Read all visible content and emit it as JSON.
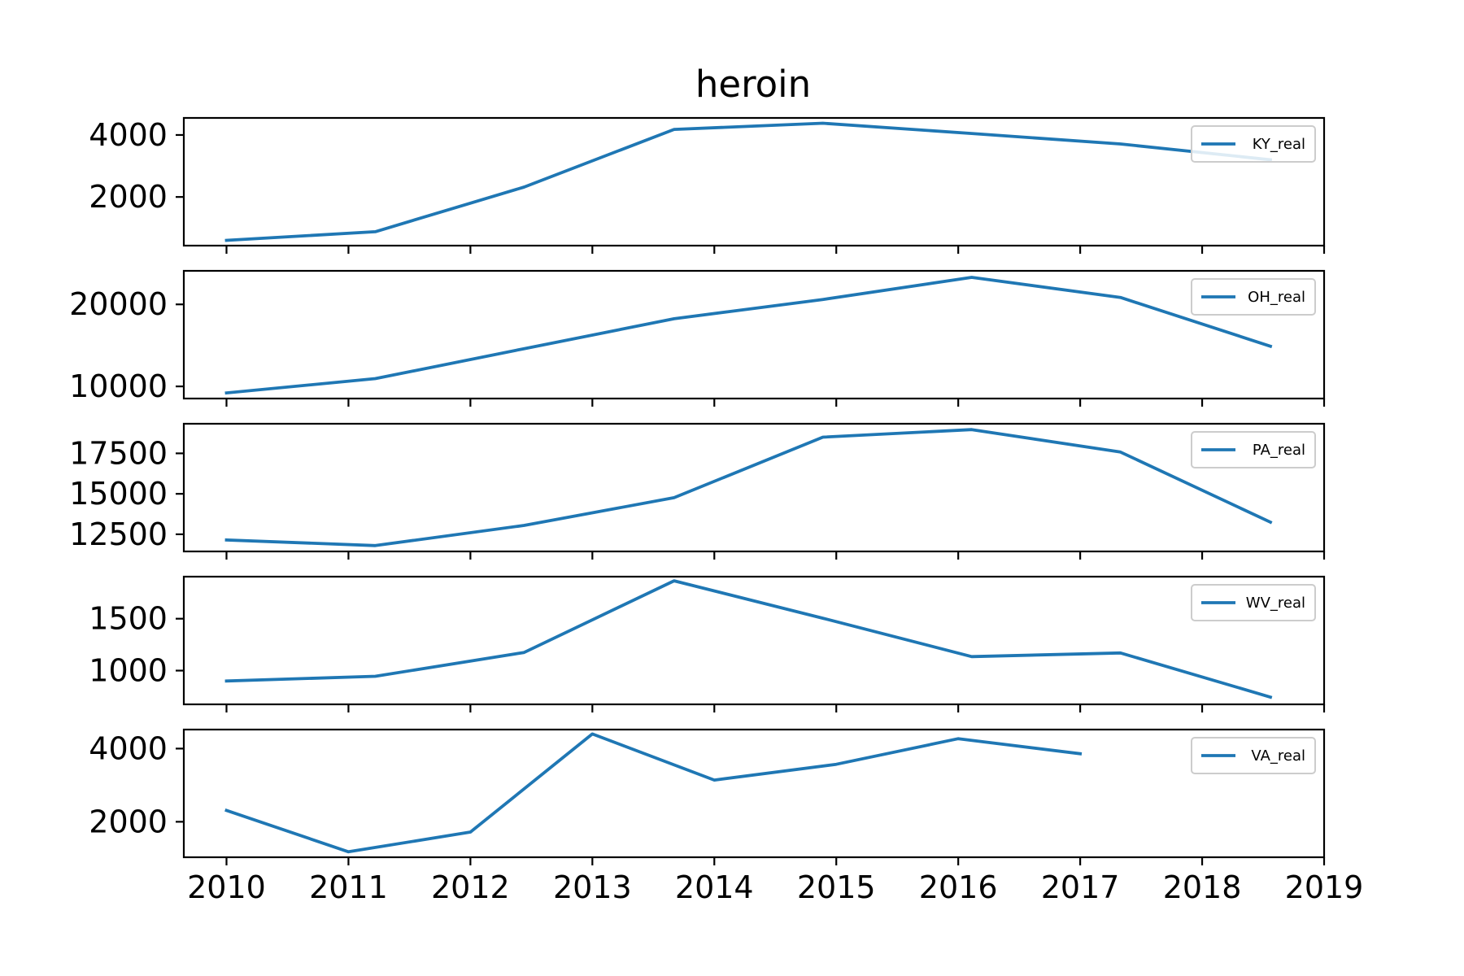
{
  "chart_data": {
    "type": "line",
    "title": "heroin",
    "panels": [
      {
        "series": [
          {
            "name": "KY_real",
            "x": [
              2010,
              2011.22,
              2012.44,
              2013.67,
              2014.89,
              2016.11,
              2017.33,
              2018.56
            ],
            "y": [
              600,
              880,
              2320,
              4180,
              4380,
              4050,
              3710,
              3200
            ]
          }
        ],
        "ylim": [
          430,
          4550
        ],
        "yticks": [
          2000,
          4000
        ],
        "ytick_labels": [
          "2000",
          "4000"
        ],
        "legend": "top-right"
      },
      {
        "series": [
          {
            "name": "OH_real",
            "x": [
              2010,
              2011.22,
              2012.44,
              2013.67,
              2014.89,
              2016.11,
              2017.33,
              2018.56
            ],
            "y": [
              9200,
              10950,
              14600,
              18250,
              20600,
              23300,
              20850,
              14900
            ]
          }
        ],
        "ylim": [
          8520,
          24090
        ],
        "yticks": [
          10000,
          20000
        ],
        "ytick_labels": [
          "10000",
          "20000"
        ],
        "legend": "top-right"
      },
      {
        "series": [
          {
            "name": "PA_real",
            "x": [
              2010,
              2011.22,
              2012.44,
              2013.67,
              2014.89,
              2016.11,
              2017.33,
              2018.56
            ],
            "y": [
              12150,
              11800,
              13050,
              14760,
              18500,
              18970,
              17580,
              13250
            ]
          }
        ],
        "ylim": [
          11440,
          19330
        ],
        "yticks": [
          12500,
          15000,
          17500
        ],
        "ytick_labels": [
          "12500",
          "15000",
          "17500"
        ],
        "legend": "top-right"
      },
      {
        "series": [
          {
            "name": "WV_real",
            "x": [
              2010,
              2011.22,
              2012.44,
              2013.67,
              2014.89,
              2016.11,
              2017.33,
              2018.56
            ],
            "y": [
              900,
              945,
              1175,
              1865,
              1505,
              1135,
              1170,
              745
            ]
          }
        ],
        "ylim": [
          675,
          1905
        ],
        "yticks": [
          1000,
          1500
        ],
        "ytick_labels": [
          "1000",
          "1500"
        ],
        "legend": "top-right"
      },
      {
        "series": [
          {
            "name": "VA_real",
            "x": [
              2010,
              2011,
              2012,
              2013,
              2014,
              2015,
              2016,
              2017
            ],
            "y": [
              2310,
              1180,
              1720,
              4400,
              3140,
              3570,
              4270,
              3860
            ]
          }
        ],
        "ylim": [
          1030,
          4520
        ],
        "yticks": [
          2000,
          4000
        ],
        "ytick_labels": [
          "2000",
          "4000"
        ],
        "legend": "top-right"
      }
    ],
    "xlim": [
      2009.65,
      2019
    ],
    "xticks": [
      2010,
      2011,
      2012,
      2013,
      2014,
      2015,
      2016,
      2017,
      2018,
      2019
    ],
    "xtick_labels": [
      "2010",
      "2011",
      "2012",
      "2013",
      "2014",
      "2015",
      "2016",
      "2017",
      "2018",
      "2019"
    ],
    "line_color": "#1f77b4",
    "grid": false
  }
}
